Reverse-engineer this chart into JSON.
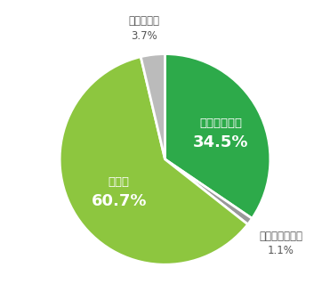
{
  "reordered_values": [
    34.5,
    1.1,
    60.7,
    3.7
  ],
  "reordered_colors": [
    "#2daa4a",
    "#999999",
    "#8dc63f",
    "#bbbbbb"
  ],
  "reordered_labels": [
    "とても上がる",
    "全く上がらない",
    "上がる",
    "上がらない"
  ],
  "inside_label_indices": [
    0,
    2
  ],
  "outside_label_indices": [
    1,
    3
  ],
  "inside_label_r": 0.58,
  "outside_label_r": 1.22,
  "label_fontsize": 9.5,
  "pct_fontsize": 13,
  "outside_fontsize": 8.5,
  "edge_color": "white",
  "edge_width": 2.0,
  "inside_text_color": "white",
  "outside_text_color": "#555555",
  "background_color": "#ffffff",
  "startangle": 90,
  "figsize": [
    3.71,
    3.46
  ],
  "dpi": 100
}
